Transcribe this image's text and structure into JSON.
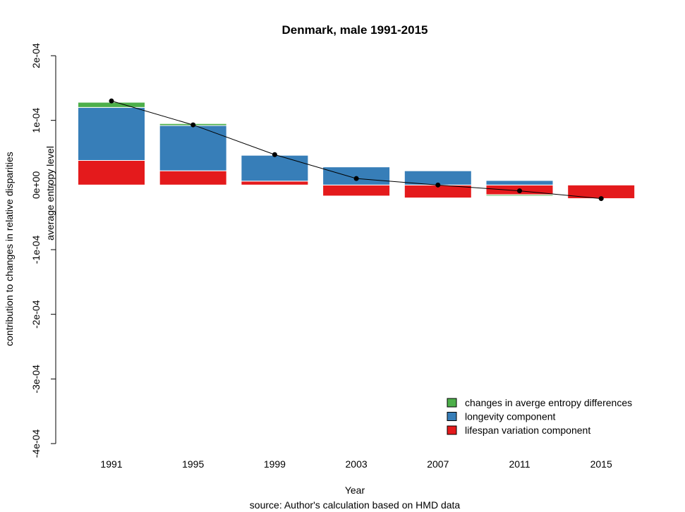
{
  "chart_data": {
    "type": "bar",
    "title": "Denmark, male 1991-2015",
    "xlabel": "Year",
    "ylabel": "contribution to changes in relative disparities",
    "ylabel2": "average entropy level",
    "caption": "source: Author's calculation based on HMD data",
    "categories": [
      "1991",
      "1995",
      "1999",
      "2003",
      "2007",
      "2011",
      "2015"
    ],
    "ylim": [
      -0.0004,
      0.0002
    ],
    "yticks": [
      {
        "value": 0.0002,
        "label": "2e-04"
      },
      {
        "value": 0.0001,
        "label": "1e-04"
      },
      {
        "value": 0,
        "label": "0e+00"
      },
      {
        "value": -0.0001,
        "label": "-1e-04"
      },
      {
        "value": -0.0002,
        "label": "-2e-04"
      },
      {
        "value": -0.0003,
        "label": "-3e-04"
      },
      {
        "value": -0.0004,
        "label": "-4e-04"
      }
    ],
    "stacked": true,
    "series": [
      {
        "name": "lifespan variation component",
        "color": "#e41a1c",
        "values": [
          3.8e-05,
          2.2e-05,
          6e-06,
          -1.7e-05,
          -2e-05,
          -1.5e-05,
          -2.1e-05
        ]
      },
      {
        "name": "longevity component",
        "color": "#377eb8",
        "values": [
          8.2e-05,
          7e-05,
          4e-05,
          2.8e-05,
          2.2e-05,
          7e-06,
          0.0
        ]
      },
      {
        "name": "changes in averge entropy differences",
        "color": "#4daf4a",
        "values": [
          8e-06,
          3e-06,
          0.0,
          0.0,
          0.0,
          -2e-06,
          0.0
        ]
      }
    ],
    "line": {
      "values": [
        0.00013,
        9.3e-05,
        4.7e-05,
        1e-05,
        0.0,
        -9e-06,
        -2.1e-05
      ]
    },
    "legend": {
      "position": "bottom-right",
      "entries": [
        {
          "label": "changes in averge entropy differences",
          "color": "#4daf4a"
        },
        {
          "label": "longevity component",
          "color": "#377eb8"
        },
        {
          "label": "lifespan variation component",
          "color": "#e41a1c"
        }
      ]
    },
    "grid": false
  }
}
